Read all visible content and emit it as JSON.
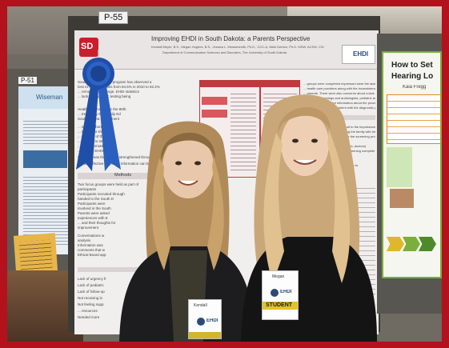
{
  "scene": {
    "description_free": true,
    "frame_color": "#b3121d"
  },
  "board_tag": "P-55",
  "left_board_tag": "P-51",
  "main_poster": {
    "title": "Improving EHDI in South Dakota: a Parents Perspective",
    "authors": "Kendall Meyer, B.S., Megan Hughes, B.S., Jessica L. Messersmith, Ph.D., CCC-A, Nikki Denton, Ph.D. MSW, ACSW, CSI",
    "department": "Department of Communication Sciences and Disorders, The University of South Dakota",
    "logo_text": "SD",
    "ehdi_logo": "EHDI",
    "methods_heading": "Methods",
    "intro_lines": [
      "South Dakota's EHDI program has observed a",
      "loss to follow-up rates from 84.5% in 2010 to 82.2%",
      "... remains a challenge. EHDI statistics",
      "... lack of diagnostic testing being"
    ],
    "left_lines": [
      "Health information for the 80th",
      "... treated by the Family Ed",
      "South Dakota Department",
      "... who are born with",
      "... treatment should",
      "... purpose of the",
      "... barriers to timely follo",
      "... how information can b",
      "... and the EHDI",
      "Identify areas that can be strengthened throughout the process",
      "Identify effective ways that information can be shared with parents about newborn hearing screenings"
    ],
    "methods_lines": [
      "Two focus groups were held as part of",
      "participants",
      "Participants recruited through",
      "handed to the South D",
      "Participants were",
      "involved in the South",
      "Parents were asked",
      "experiences with E",
      "... and their thoughts for",
      "improvement",
      "Conversations w",
      "analysis",
      "Information was",
      "comments that w",
      "Ethical Board app"
    ],
    "bottom_lines": [
      "Lack of urgency fr",
      "Lack of pediatric",
      "Lack of follow-up",
      "Not receiving lo",
      "Not feeling supp",
      "... resources",
      "Needed more"
    ],
    "right_lines": [
      "... groups were completed expressed were the lack of",
      "... health care providers along with the inconsistency of information being",
      "... parents. There were also concerns about a lack of urgency to complete",
      "... hearing screenings and audiologists, pediatric audiologists, and parental",
      "... suggested that more information about the process was needed for",
      "... clearer and more consistent with the diagnostic process",
      "... important in the overall pursuit to the importance of",
      "... parent outcomes and teaching the family with hearing loss",
      "... follow-up as parents complete the screening process",
      "... physicians/providers (i.e. nurses, doctors)",
      "... effort to promote getting the screening complete",
      "... stay proactive",
      "... among parents (i.e. better access to",
      "... to become a resource for",
      "... aid on parents"
    ]
  },
  "right_poster": {
    "title_line1": "How to Set",
    "title_line2": "Hearing Lo",
    "author": "Kaia Fregg"
  },
  "left_poster": {
    "logo_text": "Wiseman"
  },
  "ribbon": {
    "color": "#1f4fa8"
  },
  "people": {
    "left": {
      "badge_name": "Kendall",
      "badge_logo": "EHDI"
    },
    "right": {
      "badge_name": "Megan",
      "badge_logo": "EHDI",
      "badge_tag": "STUDENT"
    }
  }
}
